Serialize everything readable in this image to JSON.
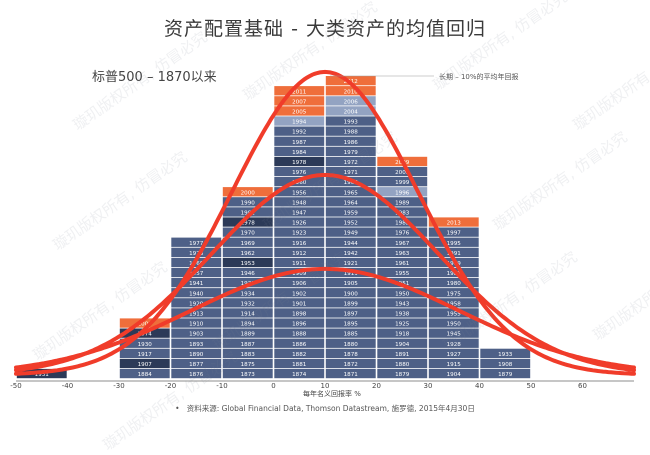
{
  "title": "资产配置基础 - 大类资产的均值回归",
  "subtitle": "标普500 – 1870以来",
  "footnote": "资料来源: Global Financial Data, Thomson Datastream, 施罗德, 2015年4月30日",
  "watermark": "璇玑版权所有, 仿冒必究",
  "colors": {
    "bar_normal": "#4e6087",
    "bar_dark": "#2c3a58",
    "bar_light": "#93a3c2",
    "bar_recent": "#ef6e3b",
    "curve": "#f03c2a",
    "text_light": "#ffffff"
  },
  "chart_data": {
    "type": "bar",
    "title": "",
    "xlabel": "每年名义回报率 %",
    "ylabel": "",
    "xlim": [
      -50,
      70
    ],
    "x_ticks": [
      -50,
      -40,
      -30,
      -20,
      -10,
      0,
      10,
      20,
      30,
      40,
      50,
      60
    ],
    "bin_width": 10,
    "annotation": "长期 – 10%的平均年回报",
    "mean_return": 10,
    "legend": "none",
    "grid": false,
    "bins": [
      {
        "range": [
          -50,
          -40
        ],
        "years": [
          "1931"
        ]
      },
      {
        "range": [
          -40,
          -30
        ],
        "years": []
      },
      {
        "range": [
          -30,
          -20
        ],
        "years": [
          "1907",
          "1917",
          "1884",
          "1930",
          "1974",
          "2008"
        ]
      },
      {
        "range": [
          -20,
          -10
        ],
        "years": [
          "1876",
          "1877",
          "1890",
          "1893",
          "1903",
          "1910",
          "1913",
          "1920",
          "1940",
          "1941",
          "1957",
          "1966",
          "1973",
          "1977"
        ]
      },
      {
        "range": [
          -10,
          0
        ],
        "years": [
          "1873",
          "1875",
          "1883",
          "1887",
          "1889",
          "1894",
          "1914",
          "1932",
          "1934",
          "1939",
          "1946",
          "1953",
          "1962",
          "1969",
          "1970",
          "1978",
          "1981",
          "1990",
          "2000"
        ]
      },
      {
        "range": [
          0,
          10
        ],
        "years": [
          "1874",
          "1881",
          "1882",
          "1886",
          "1888",
          "1896",
          "1898",
          "1901",
          "1902",
          "1906",
          "1909",
          "1911",
          "1912",
          "1916",
          "1923",
          "1926",
          "1947",
          "1948",
          "1956",
          "1960",
          "1976",
          "1978",
          "1984",
          "1987",
          "1992",
          "1994",
          "2005",
          "2007",
          "2011"
        ]
      },
      {
        "range": [
          10,
          20
        ],
        "years": [
          "1871",
          "1872",
          "1878",
          "1880",
          "1885",
          "1895",
          "1897",
          "1899",
          "1900",
          "1905",
          "1919",
          "1921",
          "1942",
          "1944",
          "1949",
          "1952",
          "1959",
          "1964",
          "1965",
          "1968",
          "1971",
          "1972",
          "1979",
          "1986",
          "1988",
          "1993",
          "2004",
          "2006",
          "2010",
          "2012"
        ]
      },
      {
        "range": [
          20,
          30
        ],
        "years": [
          "1879",
          "1880",
          "1891",
          "1904",
          "1918",
          "1925",
          "1938",
          "1943",
          "1950",
          "1951",
          "1955",
          "1961",
          "1963",
          "1967",
          "1976",
          "1982",
          "1983",
          "1989",
          "1996",
          "1999",
          "2003",
          "2009"
        ]
      },
      {
        "range": [
          30,
          40
        ],
        "years": [
          "1904",
          "1915",
          "1927",
          "1928",
          "1945",
          "1950",
          "1955",
          "1958",
          "1975",
          "1980",
          "1985",
          "1989",
          "1991",
          "1995",
          "1997",
          "2013"
        ]
      },
      {
        "range": [
          40,
          50
        ],
        "years": [
          "1879",
          "1908",
          "1933"
        ]
      },
      {
        "range": [
          50,
          60
        ],
        "years": []
      },
      {
        "range": [
          60,
          70
        ],
        "years": []
      }
    ],
    "recent_years": [
      "2000",
      "2005",
      "2007",
      "2008",
      "2009",
      "2010",
      "2011",
      "2012",
      "2013"
    ],
    "light_years": [
      "1994",
      "1996",
      "1998",
      "2000",
      "2004",
      "2006",
      "2007"
    ],
    "dark_years": [
      "1907",
      "1931",
      "1953",
      "1974",
      "1978"
    ]
  }
}
